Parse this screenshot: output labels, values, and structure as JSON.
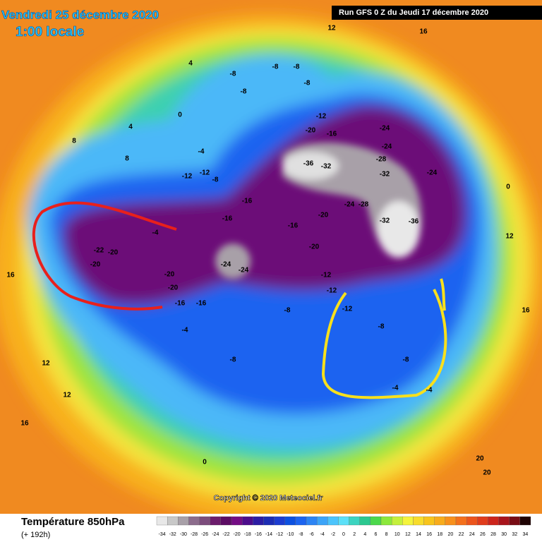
{
  "header": {
    "date": "Vendredi 25 décembre 2020",
    "time": "1:00 locale",
    "run": "Run GFS 0 Z du Jeudi 17 décembre 2020"
  },
  "map": {
    "copyright": "Copyright © 2020 Meteociel.fr",
    "labels": [
      -8,
      -8,
      -8,
      -8,
      -12,
      -20,
      -16,
      -24,
      -36,
      -32,
      -28,
      -24,
      -32,
      -36,
      -32,
      -24,
      -16,
      -20,
      -16,
      -20,
      -24,
      -28,
      -24,
      -24,
      -20,
      -20,
      -22,
      -20,
      -16,
      -16,
      -12,
      -12,
      -12,
      -8,
      -8,
      -8,
      -4,
      -4,
      -4,
      0,
      0,
      4,
      4,
      8,
      8,
      12,
      12,
      12,
      16,
      16,
      16,
      20,
      20,
      -12,
      -8,
      -8,
      -4,
      -12,
      -16,
      -20,
      -8,
      -4,
      0,
      12,
      16
    ]
  },
  "legend": {
    "title": "Température 850hPa",
    "lead": "(+ 192h)",
    "scale": [
      {
        "value": -34,
        "color": "#e8e8e8"
      },
      {
        "value": -32,
        "color": "#c8c8c8"
      },
      {
        "value": -30,
        "color": "#a8a0a8"
      },
      {
        "value": -28,
        "color": "#8c6c8c"
      },
      {
        "value": -26,
        "color": "#7c4c7c"
      },
      {
        "value": -24,
        "color": "#6c1c6c"
      },
      {
        "value": -22,
        "color": "#5c0c64"
      },
      {
        "value": -20,
        "color": "#740c84"
      },
      {
        "value": -18,
        "color": "#4c0c8c"
      },
      {
        "value": -16,
        "color": "#2c1ca4"
      },
      {
        "value": -14,
        "color": "#1c2cb4"
      },
      {
        "value": -12,
        "color": "#1c3cd0"
      },
      {
        "value": -10,
        "color": "#0c50e0"
      },
      {
        "value": -8,
        "color": "#1c64f0"
      },
      {
        "value": -6,
        "color": "#2c84f4"
      },
      {
        "value": -4,
        "color": "#3ca4f8"
      },
      {
        "value": -2,
        "color": "#4cc4fc"
      },
      {
        "value": 0,
        "color": "#5ce0f8"
      },
      {
        "value": 2,
        "color": "#3cd4c0"
      },
      {
        "value": 4,
        "color": "#2cc890"
      },
      {
        "value": 6,
        "color": "#4cd84c"
      },
      {
        "value": 8,
        "color": "#8ce83c"
      },
      {
        "value": 10,
        "color": "#c4f03c"
      },
      {
        "value": 12,
        "color": "#f4f43c"
      },
      {
        "value": 14,
        "color": "#f8dc2c"
      },
      {
        "value": 16,
        "color": "#f8c41c"
      },
      {
        "value": 18,
        "color": "#f8ac1c"
      },
      {
        "value": 20,
        "color": "#f8901c"
      },
      {
        "value": 22,
        "color": "#f4701c"
      },
      {
        "value": 24,
        "color": "#ec541c"
      },
      {
        "value": 26,
        "color": "#e03c1c"
      },
      {
        "value": 28,
        "color": "#cc241c"
      },
      {
        "value": 30,
        "color": "#a8141c"
      },
      {
        "value": 32,
        "color": "#780c14"
      },
      {
        "value": 34,
        "color": "#200404"
      }
    ]
  }
}
